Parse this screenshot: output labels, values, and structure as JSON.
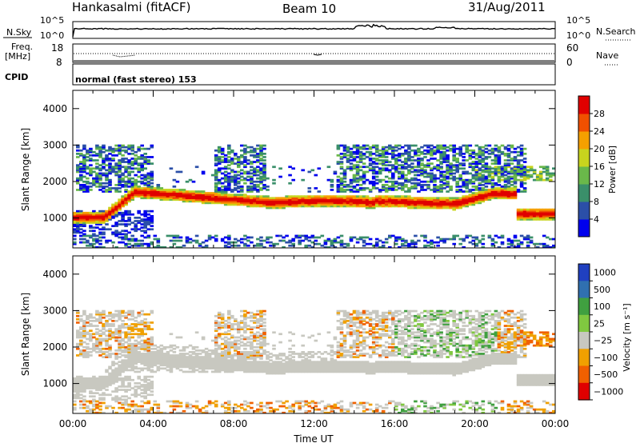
{
  "header": {
    "station": "Hankasalmi (fitACF)",
    "beam": "Beam 10",
    "date": "31/Aug/2011"
  },
  "top_panels": {
    "nsky_label": "N.Sky",
    "nsearch_label": "N.Search",
    "nsky_ticks": [
      "10^5",
      "10^0"
    ],
    "nsky_right_ticks": [
      "10^5",
      "10^0"
    ],
    "freq_label_1": "Freq.",
    "freq_label_2": "[MHz]",
    "freq_ticks": [
      "18",
      "8"
    ],
    "nave_label": "Nave",
    "nave_ticks": [
      "60",
      "0"
    ],
    "cpid_label": "CPID",
    "cpid_text": "normal (fast stereo) 153"
  },
  "colors": {
    "power_scale": [
      "#0000ee",
      "#2b4fa8",
      "#3a8f6a",
      "#6ab84a",
      "#c8d41e",
      "#f5a000",
      "#f05000",
      "#e00000"
    ],
    "velocity_scale": [
      "#2040c0",
      "#3070b0",
      "#40a040",
      "#80c840",
      "#c8c8c0",
      "#f0a000",
      "#f06000",
      "#e00000"
    ],
    "ground_scatter": "#c8c8c0"
  },
  "chart_data": [
    {
      "type": "heatmap",
      "name": "power",
      "ylabel": "Slant Range [km]",
      "yticks": [
        1000,
        2000,
        3000,
        4000
      ],
      "ylim": [
        180,
        4500
      ],
      "xlim": [
        0,
        24
      ],
      "colorbar_label": "Power [dB]",
      "colorbar_ticks": [
        "4",
        "8",
        "12",
        "16",
        "20",
        "24",
        "28"
      ],
      "colorbar_range": [
        0,
        32
      ]
    },
    {
      "type": "heatmap",
      "name": "velocity",
      "ylabel": "Slant Range [km]",
      "yticks": [
        1000,
        2000,
        3000,
        4000
      ],
      "ylim": [
        180,
        4500
      ],
      "xlim": [
        0,
        24
      ],
      "xlabel": "Time UT",
      "xticks": [
        "00:00",
        "04:00",
        "08:00",
        "12:00",
        "16:00",
        "20:00",
        "00:00"
      ],
      "colorbar_label": "Velocity [m s⁻¹]",
      "colorbar_ticks": [
        "1000",
        "500",
        "100",
        "25",
        "−25",
        "−100",
        "−500",
        "−1000"
      ]
    }
  ]
}
